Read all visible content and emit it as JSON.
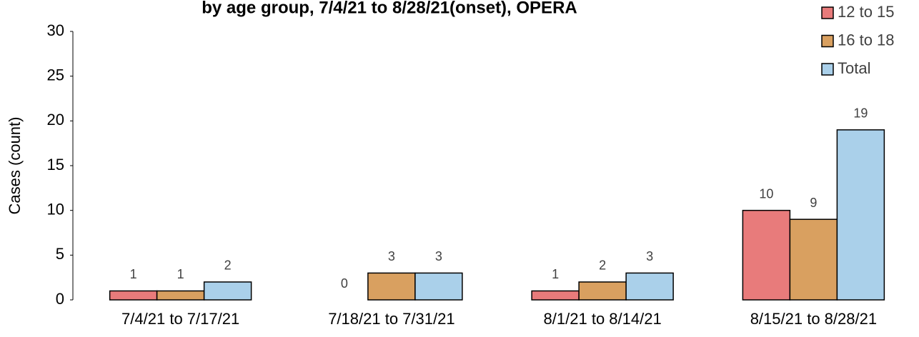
{
  "chart_data": {
    "type": "bar",
    "title": "by age group, 7/4/21 to 8/28/21(onset), OPERA",
    "y_label": "Cases (count)",
    "categories": [
      "7/4/21 to 7/17/21",
      "7/18/21 to 7/31/21",
      "8/1/21 to 8/14/21",
      "8/15/21 to 8/28/21"
    ],
    "series": [
      {
        "name": "12 to 15",
        "color": "#e87b7b",
        "values": [
          1,
          0,
          1,
          10
        ]
      },
      {
        "name": "16 to 18",
        "color": "#d9a060",
        "values": [
          1,
          3,
          2,
          9
        ]
      },
      {
        "name": "Total",
        "color": "#aad0ea",
        "values": [
          2,
          3,
          3,
          19
        ]
      }
    ],
    "ylim": [
      0,
      30
    ],
    "yticks": [
      0,
      5,
      10,
      15,
      20,
      25,
      30
    ],
    "legend": "top-right"
  }
}
